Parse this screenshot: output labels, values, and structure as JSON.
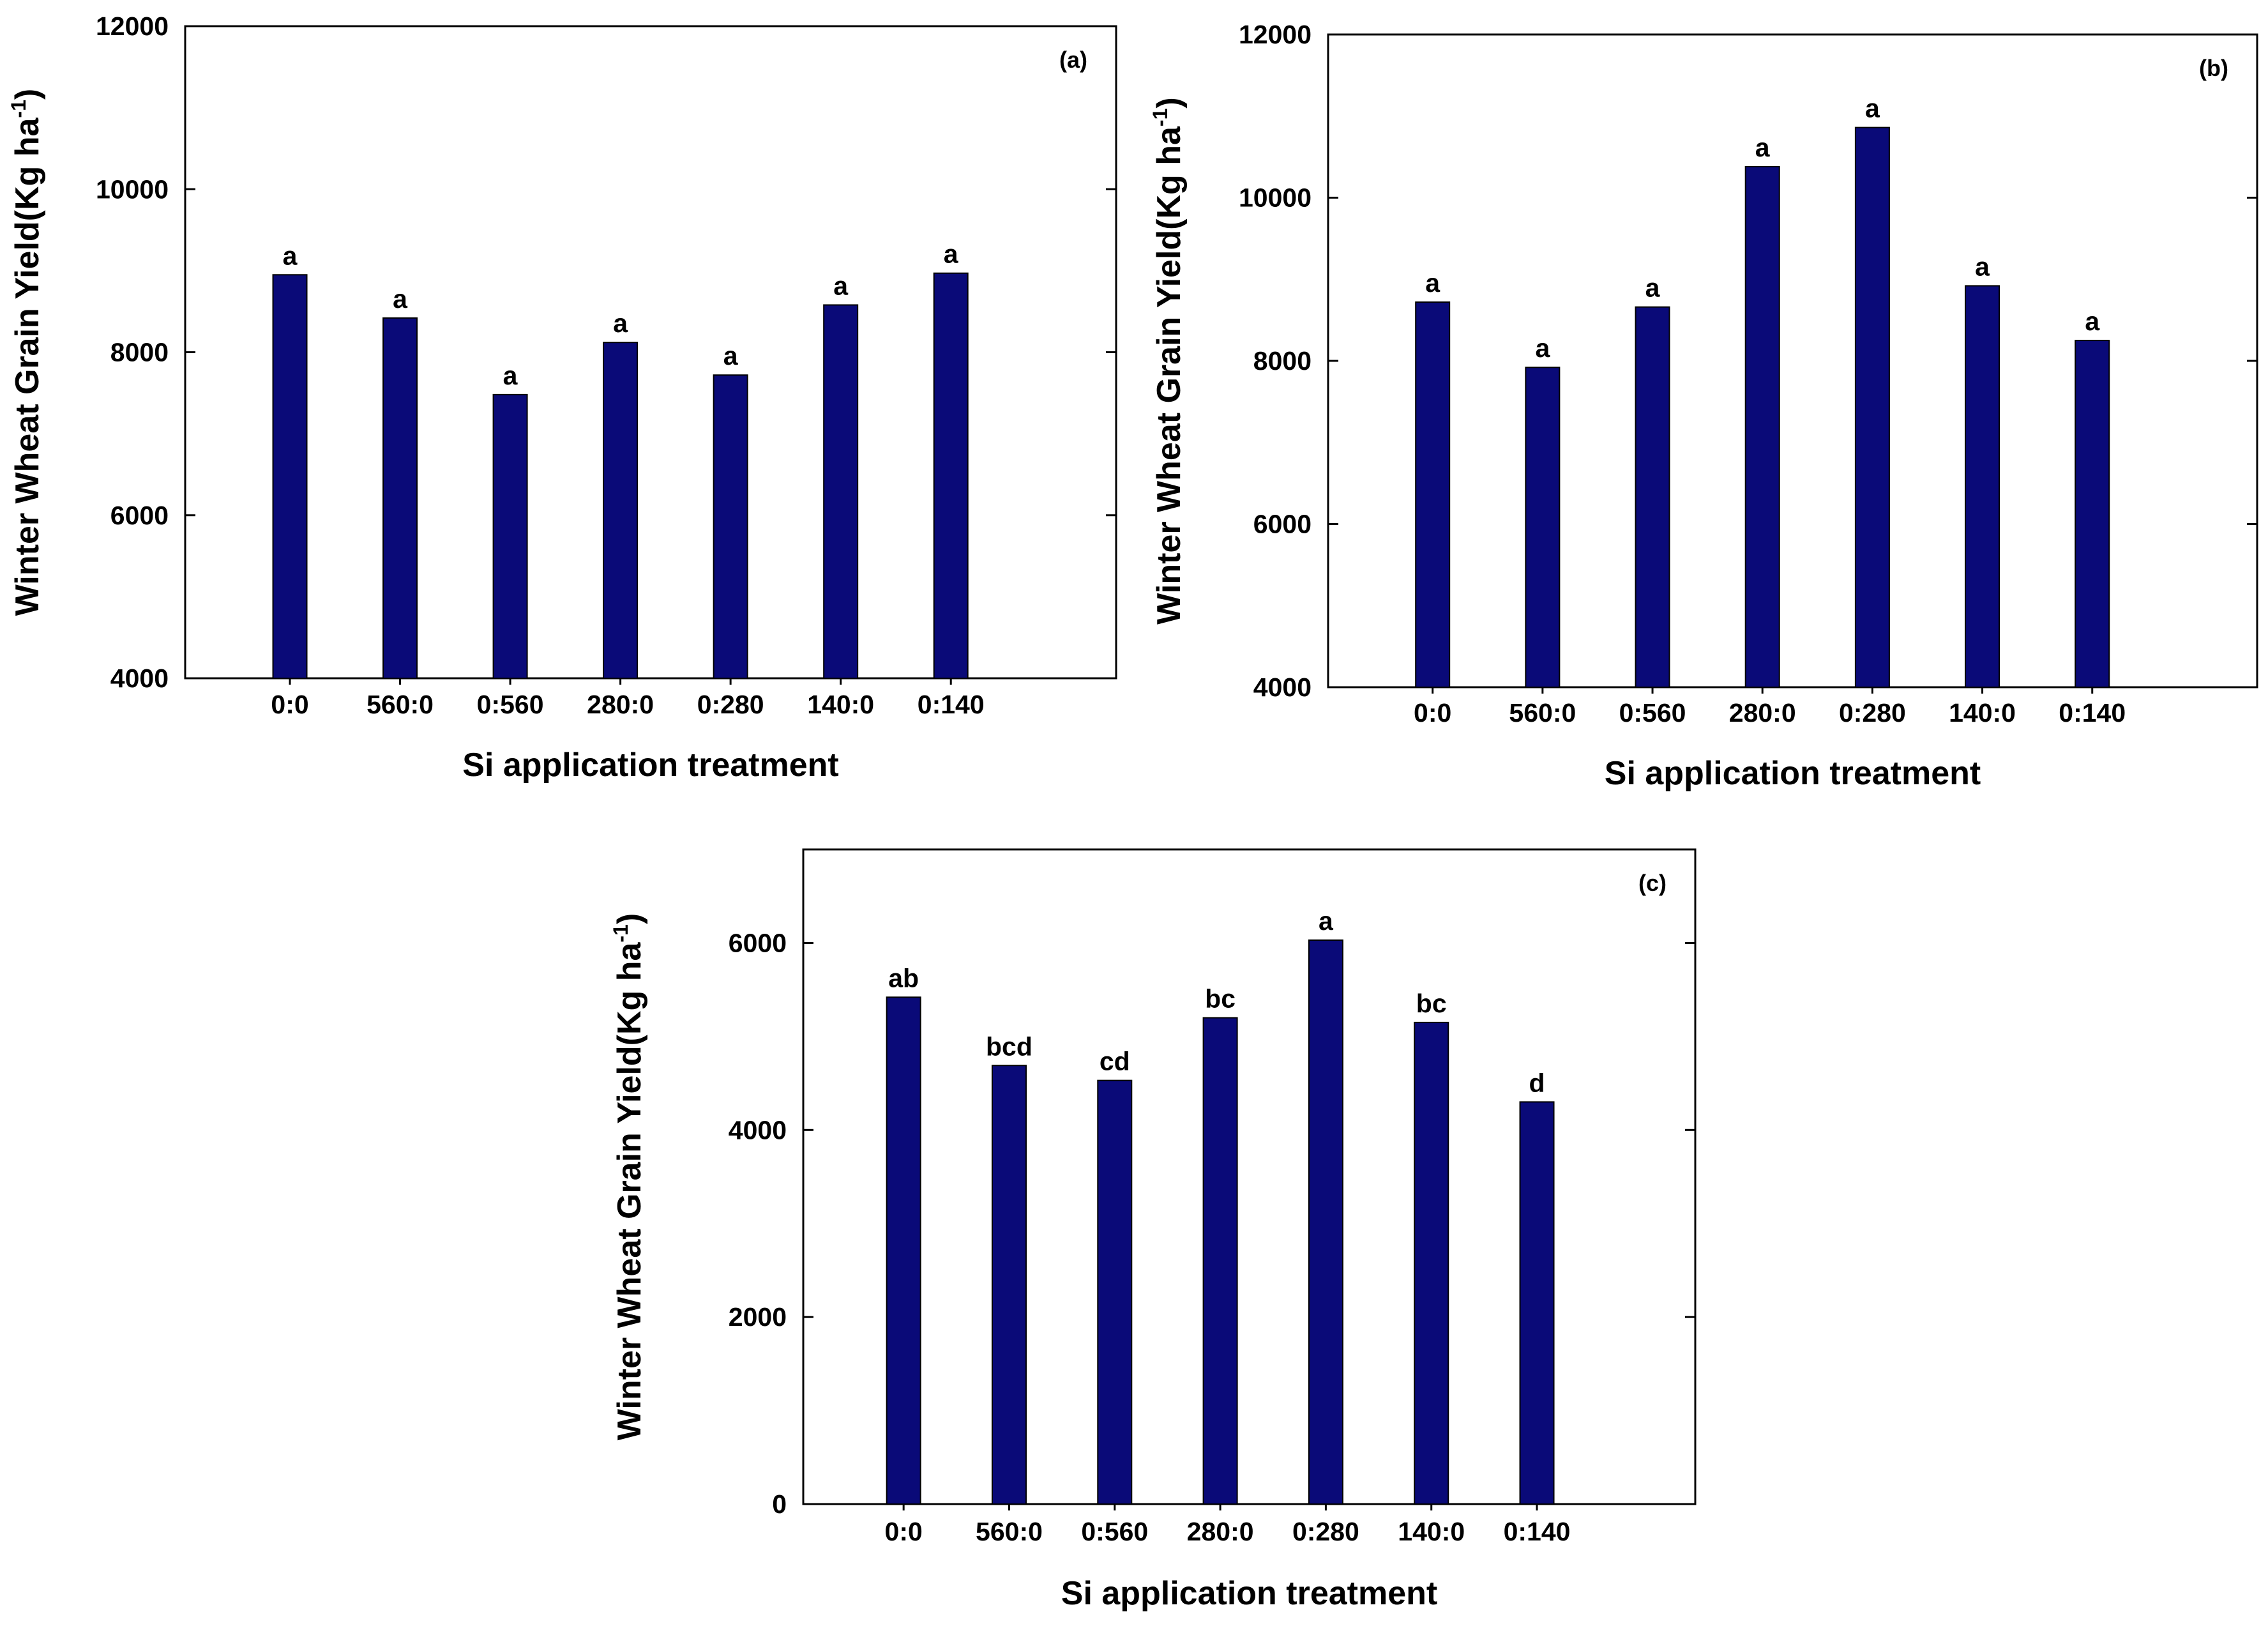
{
  "colors": {
    "bar_fill": "#0a0a78",
    "axis": "#000000",
    "background": "#ffffff"
  },
  "chart_data": [
    {
      "type": "bar",
      "panel": "(a)",
      "categories": [
        "0:0",
        "560:0",
        "0:560",
        "280:0",
        "0:280",
        "140:0",
        "0:140"
      ],
      "values": [
        8950,
        8420,
        7480,
        8120,
        7720,
        8580,
        8970
      ],
      "significance": [
        "a",
        "a",
        "a",
        "a",
        "a",
        "a",
        "a"
      ],
      "xlabel": "Si application treatment",
      "ylabel": "Winter Wheat Grain Yield(Kg ha",
      "ylabel_sup": "-1",
      "ylabel_close": ")",
      "ylim": [
        4000,
        12000
      ],
      "yticks": [
        4000,
        6000,
        8000,
        10000,
        12000
      ],
      "grid": false
    },
    {
      "type": "bar",
      "panel": "(b)",
      "categories": [
        "0:0",
        "560:0",
        "0:560",
        "280:0",
        "0:280",
        "140:0",
        "0:140"
      ],
      "values": [
        8720,
        7920,
        8660,
        10380,
        10860,
        8920,
        8250
      ],
      "significance": [
        "a",
        "a",
        "a",
        "a",
        "a",
        "a",
        "a"
      ],
      "xlabel": "Si application treatment",
      "ylabel": "Winter Wheat Grain Yield(Kg ha",
      "ylabel_sup": "-1",
      "ylabel_close": ")",
      "ylim": [
        4000,
        12000
      ],
      "yticks": [
        4000,
        6000,
        8000,
        10000,
        12000
      ],
      "grid": false
    },
    {
      "type": "bar",
      "panel": "(c)",
      "categories": [
        "0:0",
        "560:0",
        "0:560",
        "280:0",
        "0:280",
        "140:0",
        "0:140"
      ],
      "values": [
        5420,
        4690,
        4530,
        5200,
        6030,
        5150,
        4300
      ],
      "significance": [
        "ab",
        "bcd",
        "cd",
        "bc",
        "a",
        "bc",
        "d"
      ],
      "xlabel": "Si application treatment",
      "ylabel": "Winter Wheat Grain Yield(Kg ha",
      "ylabel_sup": "-1",
      "ylabel_close": ")",
      "ylim": [
        0,
        7000
      ],
      "yticks": [
        0,
        2000,
        4000,
        6000
      ],
      "grid": false
    }
  ]
}
